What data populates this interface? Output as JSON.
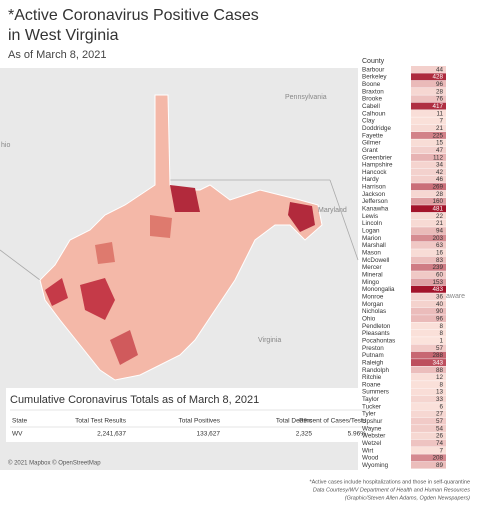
{
  "header": {
    "title_lines": [
      "*Active Coronavirus Positive Cases",
      "in West Virginia"
    ],
    "subtitle": "As of March 8, 2021"
  },
  "map": {
    "labels": [
      "Pennsylvania",
      "Maryland",
      "Virginia",
      "hio",
      "aware"
    ],
    "attribution": "© 2021 Mapbox © OpenStreetMap"
  },
  "counties": {
    "header": "County",
    "names": [
      "Barbour",
      "Berkeley",
      "Boone",
      "Braxton",
      "Brooke",
      "Cabell",
      "Calhoun",
      "Clay",
      "Doddridge",
      "Fayette",
      "Gilmer",
      "Grant",
      "Greenbrier",
      "Hampshire",
      "Hancock",
      "Hardy",
      "Harrison",
      "Jackson",
      "Jefferson",
      "Kanawha",
      "Lewis",
      "Lincoln",
      "Logan",
      "Marion",
      "Marshall",
      "Mason",
      "McDowell",
      "Mercer",
      "Mineral",
      "Mingo",
      "Monongalia",
      "Monroe",
      "Morgan",
      "Nicholas",
      "Ohio",
      "Pendleton",
      "Pleasants",
      "Pocahontas",
      "Preston",
      "Putnam",
      "Raleigh",
      "Randolph",
      "Ritchie",
      "Roane",
      "Summers",
      "Taylor",
      "Tucker",
      "Tyler",
      "Upshur",
      "Wayne",
      "Webster",
      "Wetzel",
      "Wirt",
      "Wood",
      "Wyoming"
    ],
    "values": [
      44,
      428,
      96,
      28,
      76,
      417,
      11,
      7,
      21,
      225,
      15,
      47,
      112,
      34,
      42,
      46,
      269,
      28,
      160,
      481,
      22,
      21,
      94,
      203,
      63,
      16,
      83,
      239,
      60,
      153,
      483,
      36,
      40,
      90,
      96,
      8,
      8,
      1,
      57,
      288,
      343,
      88,
      12,
      8,
      13,
      33,
      6,
      27,
      57,
      54,
      26,
      74,
      7,
      208,
      89
    ]
  },
  "table": {
    "title": "Cumulative Coronavirus Totals as of March 8, 2021",
    "columns": [
      "State",
      "Total Test Results",
      "Total Positives",
      "Total Deaths",
      "Percent of Cases/Tests"
    ],
    "rows": [
      [
        "WV",
        "2,241,637",
        "133,627",
        "2,325",
        "5.96%"
      ]
    ]
  },
  "footnotes": [
    "*Active cases include hospitalizations and those in self-quarantine",
    "Data Courtesy/WV Department of Health and Human Resources",
    "(Graphic/Steven Allen Adams, Ogden Newspapers)"
  ]
}
